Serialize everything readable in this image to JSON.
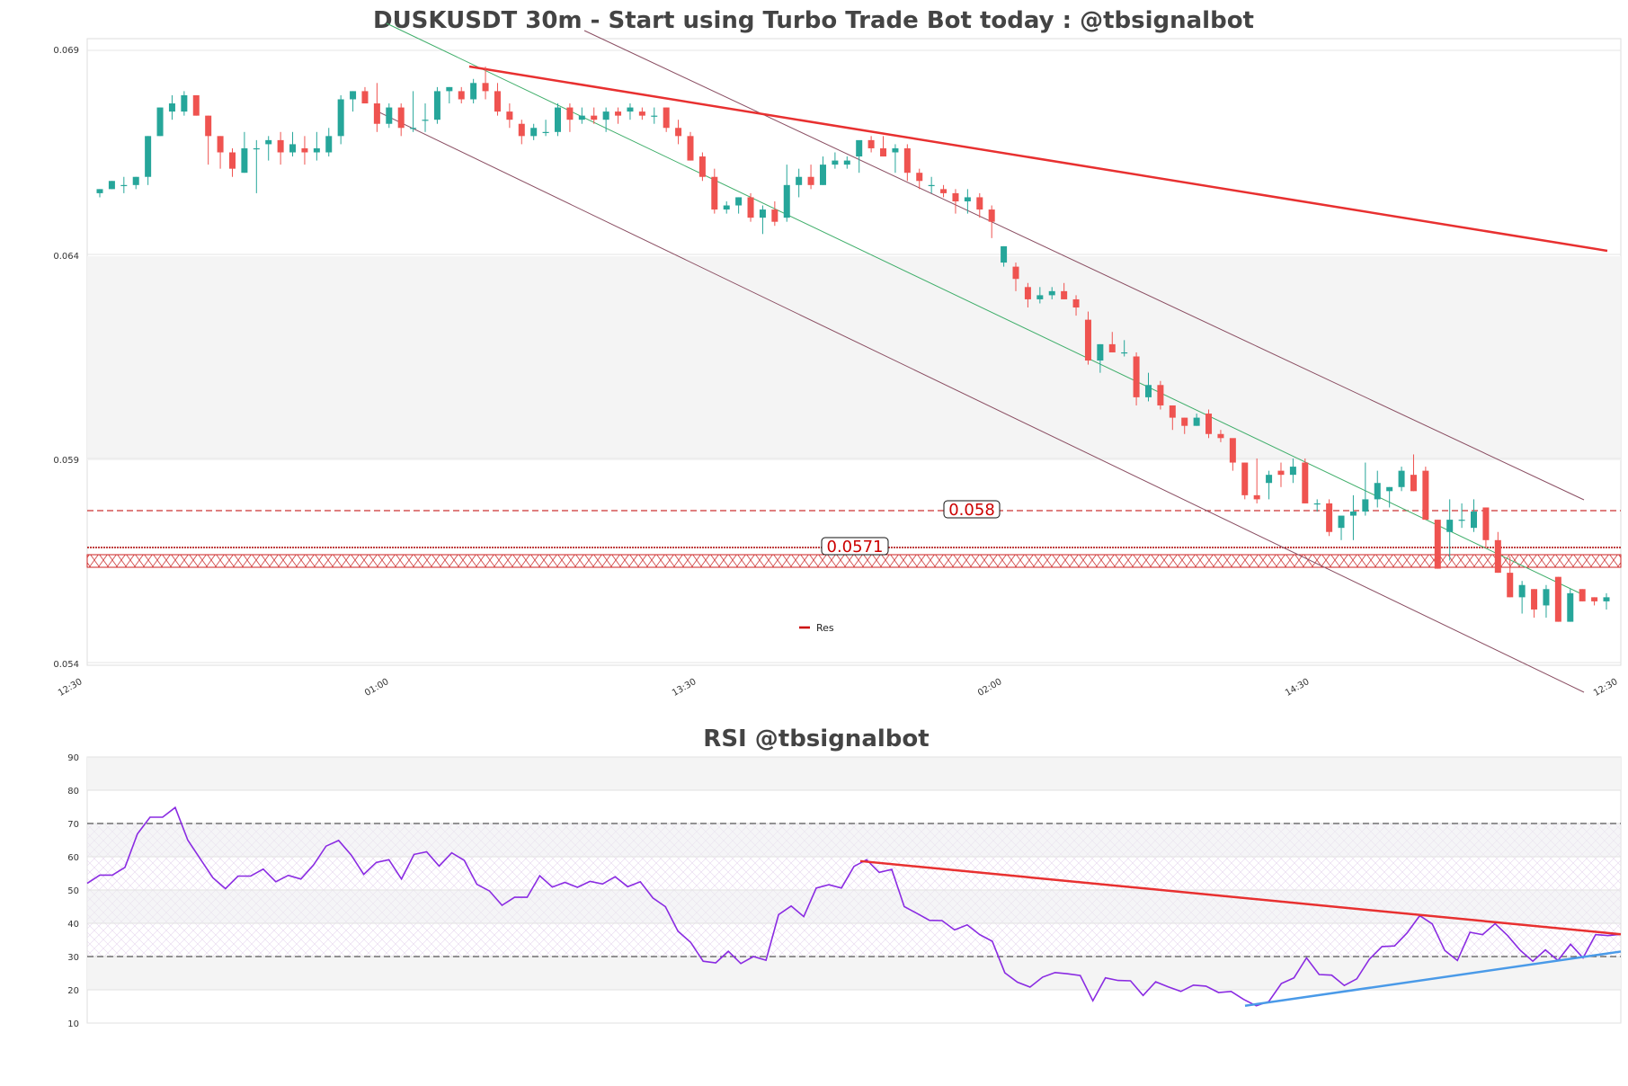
{
  "chart_data": [
    {
      "type": "candlestick",
      "title": "DUSKUSDT 30m - Start using Turbo Trade Bot today : @tbsignalbot",
      "x_tick_labels": [
        "12:30",
        "01:00",
        "13:30",
        "02:00",
        "14:30",
        "12:30"
      ],
      "y_tick_labels": [
        "0.069",
        "0.064",
        "0.059",
        "0.054"
      ],
      "ylim": [
        0.054,
        0.0693
      ],
      "grid": true,
      "legend": {
        "entries": [
          "Res"
        ],
        "placement": "lower-center"
      },
      "levels": [
        {
          "value": 0.058,
          "label": "0.058"
        },
        {
          "value": 0.0571,
          "label": "0.0571"
        }
      ],
      "candles": [
        [
          0.0655,
          0.0656,
          0.0654,
          0.0656
        ],
        [
          0.0656,
          0.0658,
          0.0656,
          0.0658
        ],
        [
          0.0657,
          0.0659,
          0.0655,
          0.0657
        ],
        [
          0.0657,
          0.0659,
          0.0656,
          0.0659
        ],
        [
          0.0659,
          0.0669,
          0.0657,
          0.0669
        ],
        [
          0.0669,
          0.0676,
          0.0669,
          0.0676
        ],
        [
          0.0675,
          0.0679,
          0.0673,
          0.0677
        ],
        [
          0.0675,
          0.068,
          0.0674,
          0.0679
        ],
        [
          0.0679,
          0.0679,
          0.0674,
          0.0674
        ],
        [
          0.0674,
          0.0674,
          0.0662,
          0.0669
        ],
        [
          0.0669,
          0.0669,
          0.0661,
          0.0665
        ],
        [
          0.0665,
          0.0666,
          0.0659,
          0.0661
        ],
        [
          0.066,
          0.067,
          0.066,
          0.0666
        ],
        [
          0.0666,
          0.0668,
          0.0655,
          0.0666
        ],
        [
          0.0667,
          0.0669,
          0.0663,
          0.0668
        ],
        [
          0.0668,
          0.067,
          0.0662,
          0.0665
        ],
        [
          0.0665,
          0.067,
          0.0664,
          0.0667
        ],
        [
          0.0666,
          0.0669,
          0.0662,
          0.0665
        ],
        [
          0.0665,
          0.067,
          0.0663,
          0.0666
        ],
        [
          0.0665,
          0.0671,
          0.0664,
          0.0669
        ],
        [
          0.0669,
          0.0679,
          0.0667,
          0.0678
        ],
        [
          0.0678,
          0.068,
          0.0675,
          0.068
        ],
        [
          0.068,
          0.0681,
          0.0677,
          0.0677
        ],
        [
          0.0677,
          0.0682,
          0.067,
          0.0672
        ],
        [
          0.0672,
          0.0677,
          0.0671,
          0.0676
        ],
        [
          0.0676,
          0.0677,
          0.0669,
          0.0671
        ],
        [
          0.0671,
          0.068,
          0.067,
          0.0671
        ],
        [
          0.0673,
          0.0677,
          0.067,
          0.0673
        ],
        [
          0.0673,
          0.0681,
          0.0672,
          0.068
        ],
        [
          0.068,
          0.0681,
          0.0677,
          0.0681
        ],
        [
          0.068,
          0.0681,
          0.0677,
          0.0678
        ],
        [
          0.0678,
          0.0683,
          0.0677,
          0.0682
        ],
        [
          0.0682,
          0.0686,
          0.0678,
          0.068
        ],
        [
          0.068,
          0.0682,
          0.0674,
          0.0675
        ],
        [
          0.0675,
          0.0677,
          0.0671,
          0.0673
        ],
        [
          0.0672,
          0.0673,
          0.0667,
          0.0669
        ],
        [
          0.0669,
          0.0672,
          0.0668,
          0.0671
        ],
        [
          0.067,
          0.0673,
          0.0669,
          0.067
        ],
        [
          0.067,
          0.0677,
          0.0669,
          0.0676
        ],
        [
          0.0676,
          0.0677,
          0.067,
          0.0673
        ],
        [
          0.0673,
          0.0676,
          0.0672,
          0.0674
        ],
        [
          0.0674,
          0.0676,
          0.0672,
          0.0673
        ],
        [
          0.0673,
          0.0676,
          0.067,
          0.0675
        ],
        [
          0.0675,
          0.0676,
          0.0672,
          0.0674
        ],
        [
          0.0675,
          0.0677,
          0.0673,
          0.0676
        ],
        [
          0.0675,
          0.0676,
          0.0673,
          0.0674
        ],
        [
          0.0674,
          0.0676,
          0.0672,
          0.0674
        ],
        [
          0.0676,
          0.0676,
          0.067,
          0.0671
        ],
        [
          0.0671,
          0.0673,
          0.0667,
          0.0669
        ],
        [
          0.0669,
          0.067,
          0.0663,
          0.0663
        ],
        [
          0.0664,
          0.0665,
          0.0658,
          0.0659
        ],
        [
          0.0659,
          0.0661,
          0.065,
          0.0651
        ],
        [
          0.0651,
          0.0653,
          0.065,
          0.0652
        ],
        [
          0.0652,
          0.0654,
          0.065,
          0.0654
        ],
        [
          0.0654,
          0.0655,
          0.0648,
          0.0649
        ],
        [
          0.0649,
          0.0652,
          0.0645,
          0.0651
        ],
        [
          0.0651,
          0.0653,
          0.0647,
          0.0648
        ],
        [
          0.0649,
          0.0662,
          0.0648,
          0.0657
        ],
        [
          0.0657,
          0.0661,
          0.0654,
          0.0659
        ],
        [
          0.0659,
          0.0662,
          0.0656,
          0.0657
        ],
        [
          0.0657,
          0.0664,
          0.0657,
          0.0662
        ],
        [
          0.0662,
          0.0665,
          0.0661,
          0.0663
        ],
        [
          0.0662,
          0.0664,
          0.0661,
          0.0663
        ],
        [
          0.0664,
          0.0667,
          0.066,
          0.0668
        ],
        [
          0.0668,
          0.0669,
          0.0665,
          0.0666
        ],
        [
          0.0666,
          0.0669,
          0.0664,
          0.0664
        ],
        [
          0.0665,
          0.0667,
          0.066,
          0.0666
        ],
        [
          0.0666,
          0.0667,
          0.0658,
          0.066
        ],
        [
          0.066,
          0.0661,
          0.0656,
          0.0658
        ],
        [
          0.0657,
          0.0659,
          0.0655,
          0.0657
        ],
        [
          0.0656,
          0.0657,
          0.0654,
          0.0655
        ],
        [
          0.0655,
          0.0656,
          0.065,
          0.0653
        ],
        [
          0.0653,
          0.0656,
          0.065,
          0.0654
        ],
        [
          0.0654,
          0.0655,
          0.0649,
          0.0651
        ],
        [
          0.0651,
          0.0652,
          0.0644,
          0.0648
        ],
        [
          0.0638,
          0.0642,
          0.0637,
          0.0642
        ],
        [
          0.0637,
          0.0638,
          0.0631,
          0.0634
        ],
        [
          0.0632,
          0.0633,
          0.0627,
          0.0629
        ],
        [
          0.0629,
          0.0632,
          0.0628,
          0.063
        ],
        [
          0.063,
          0.0632,
          0.0629,
          0.0631
        ],
        [
          0.0631,
          0.0633,
          0.0629,
          0.0629
        ],
        [
          0.0629,
          0.063,
          0.0625,
          0.0627
        ],
        [
          0.0624,
          0.0626,
          0.0613,
          0.0614
        ],
        [
          0.0614,
          0.0618,
          0.0611,
          0.0618
        ],
        [
          0.0618,
          0.0621,
          0.0616,
          0.0616
        ],
        [
          0.0616,
          0.0619,
          0.0615,
          0.0616
        ],
        [
          0.0615,
          0.0616,
          0.0603,
          0.0605
        ],
        [
          0.0605,
          0.0611,
          0.0604,
          0.0608
        ],
        [
          0.0608,
          0.0609,
          0.0602,
          0.0603
        ],
        [
          0.0603,
          0.0603,
          0.0597,
          0.06
        ],
        [
          0.06,
          0.06,
          0.0596,
          0.0598
        ],
        [
          0.0598,
          0.0601,
          0.0598,
          0.06
        ],
        [
          0.0601,
          0.0602,
          0.0595,
          0.0596
        ],
        [
          0.0596,
          0.0597,
          0.0594,
          0.0595
        ],
        [
          0.0595,
          0.0594,
          0.0587,
          0.0589
        ],
        [
          0.0589,
          0.0589,
          0.058,
          0.0581
        ],
        [
          0.0581,
          0.059,
          0.0579,
          0.058
        ],
        [
          0.0584,
          0.0587,
          0.058,
          0.0586
        ],
        [
          0.0587,
          0.0589,
          0.0583,
          0.0586
        ],
        [
          0.0586,
          0.059,
          0.0584,
          0.0588
        ],
        [
          0.0589,
          0.059,
          0.0579,
          0.0579
        ],
        [
          0.0579,
          0.058,
          0.0577,
          0.0579
        ],
        [
          0.0579,
          0.058,
          0.0571,
          0.0572
        ],
        [
          0.0573,
          0.0575,
          0.057,
          0.0576
        ],
        [
          0.0576,
          0.0581,
          0.057,
          0.0577
        ],
        [
          0.0577,
          0.0589,
          0.0576,
          0.058
        ],
        [
          0.058,
          0.0587,
          0.0578,
          0.0584
        ],
        [
          0.0582,
          0.0583,
          0.0578,
          0.0583
        ],
        [
          0.0583,
          0.0588,
          0.0582,
          0.0587
        ],
        [
          0.0586,
          0.0591,
          0.0582,
          0.0582
        ],
        [
          0.0587,
          0.0588,
          0.0575,
          0.0575
        ],
        [
          0.0575,
          0.0575,
          0.0563,
          0.0563
        ],
        [
          0.0572,
          0.058,
          0.0565,
          0.0575
        ],
        [
          0.0575,
          0.0579,
          0.0573,
          0.0575
        ],
        [
          0.0573,
          0.058,
          0.0572,
          0.0577
        ],
        [
          0.0578,
          0.0578,
          0.0568,
          0.057
        ],
        [
          0.057,
          0.0572,
          0.0562,
          0.0562
        ],
        [
          0.0562,
          0.0566,
          0.0556,
          0.0556
        ],
        [
          0.0556,
          0.056,
          0.0552,
          0.0559
        ],
        [
          0.0558,
          0.0558,
          0.0551,
          0.0553
        ],
        [
          0.0554,
          0.0559,
          0.0551,
          0.0558
        ],
        [
          0.0561,
          0.0561,
          0.055,
          0.055
        ],
        [
          0.055,
          0.0558,
          0.055,
          0.0557
        ],
        [
          0.0558,
          0.0558,
          0.0555,
          0.0555
        ],
        [
          0.0556,
          0.0556,
          0.0554,
          0.0555
        ],
        [
          0.0555,
          0.0557,
          0.0553,
          0.0556
        ]
      ]
    },
    {
      "type": "line",
      "title": "RSI @tbsignalbot",
      "y_tick_labels": [
        "90",
        "80",
        "70",
        "60",
        "50",
        "40",
        "30",
        "20",
        "10"
      ],
      "ylim": [
        10,
        90
      ],
      "reference_lines": [
        70,
        30
      ],
      "grid": true,
      "series": [
        {
          "values": [
            52,
            54.5,
            54.5,
            56.8,
            66.9,
            71.9,
            71.9,
            74.8,
            65,
            59.3,
            53.7,
            50.4,
            54.2,
            54.2,
            56.3,
            52.5,
            54.4,
            53.3,
            57.5,
            63.2,
            64.9,
            60.5,
            54.7,
            58.3,
            59.1,
            53.3,
            60.7,
            61.5,
            57.2,
            61.2,
            58.9,
            51.7,
            49.7,
            45.4,
            47.8,
            47.8,
            54.3,
            50.9,
            52.3,
            50.8,
            52.6,
            51.8,
            54,
            51,
            52.5,
            47.6,
            45,
            37.6,
            34.3,
            28.6,
            28.1,
            31.6,
            27.9,
            30,
            28.9,
            42.6,
            45.2,
            42,
            50.6,
            51.6,
            50.6,
            57.1,
            59.1,
            55.3,
            56.2,
            45,
            43,
            40.9,
            40.8,
            38,
            39.5,
            36.6,
            34.6,
            25.1,
            22.3,
            20.8,
            23.8,
            25.2,
            24.8,
            24.3,
            16.7,
            23.6,
            22.8,
            22.7,
            18.3,
            22.4,
            20.9,
            19.5,
            21.4,
            21.1,
            19.2,
            19.5,
            17.1,
            15.2,
            16.5,
            21.9,
            23.6,
            29.6,
            24.6,
            24.4,
            21.3,
            23.3,
            29.2,
            33,
            33.2,
            37.1,
            42.3,
            39.8,
            31.8,
            28.8,
            37.3,
            36.6,
            39.9,
            36.3,
            31.9,
            28.6,
            32,
            28.8,
            33.7,
            29.6,
            36.6,
            36.3,
            36.7
          ]
        },
        {
          "name": "",
          "values": [
            58.7,
            36.7
          ]
        },
        {
          "name": "",
          "values": [
            15.2,
            31.5
          ]
        }
      ]
    }
  ]
}
